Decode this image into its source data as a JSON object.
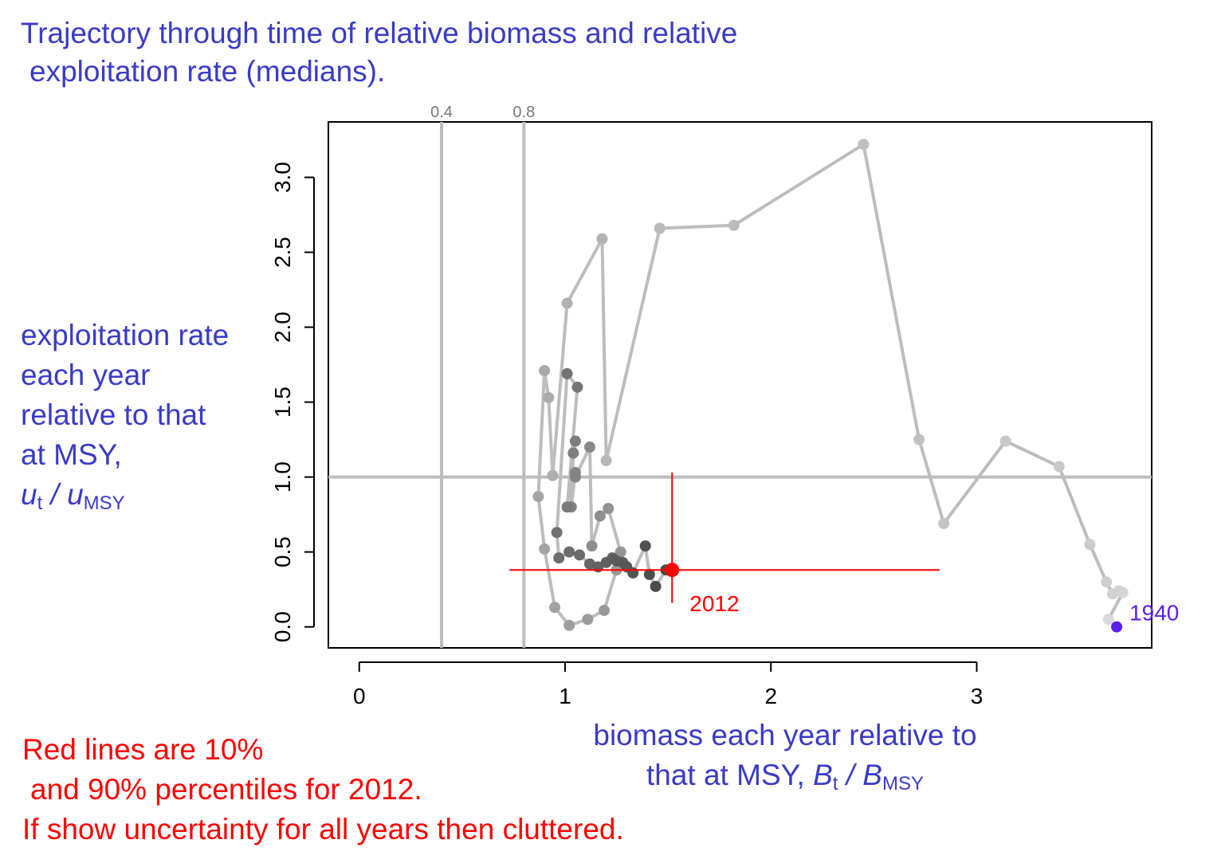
{
  "title": {
    "line1": "Trajectory through time of relative biomass and relative",
    "line2": "exploitation rate (medians)."
  },
  "ylabel": {
    "line1": "exploitation rate",
    "line2": "each year",
    "line3": "relative to that",
    "line4": "at MSY,",
    "u": "u",
    "t": "t",
    "slash": " / ",
    "u2": "u",
    "msy": "MSY"
  },
  "xlabel": {
    "line1": "biomass each year relative to",
    "line2_prefix": "that at MSY, ",
    "B": "B",
    "t": "t",
    "slash": " / ",
    "B2": "B",
    "msy": "MSY"
  },
  "note": {
    "line1": "Red lines are 10%",
    "line2": "and 90% percentiles for 2012.",
    "line3": "If show uncertainty for all years then cluttered."
  },
  "chart_data": {
    "type": "line",
    "xlim": [
      -0.15,
      3.85
    ],
    "ylim": [
      -0.14,
      3.37
    ],
    "x_ticks": [
      0,
      1,
      2,
      3
    ],
    "x_tick_labels": [
      "0",
      "1",
      "2",
      "3"
    ],
    "y_ticks": [
      0.0,
      0.5,
      1.0,
      1.5,
      2.0,
      2.5,
      3.0
    ],
    "y_tick_labels": [
      "0.0",
      "0.5",
      "1.0",
      "1.5",
      "2.0",
      "2.5",
      "3.0"
    ],
    "vlines": [
      {
        "x": 0.4,
        "label": "0.4"
      },
      {
        "x": 0.8,
        "label": "0.8"
      }
    ],
    "hline": {
      "y": 1.0
    },
    "line_color": "#bdbdbd",
    "start_color": "#5b1ff0",
    "end_color": "#ff0000",
    "trajectory": [
      {
        "x": 3.68,
        "y": 0.0
      },
      {
        "x": 3.64,
        "y": 0.05
      },
      {
        "x": 3.71,
        "y": 0.23
      },
      {
        "x": 3.69,
        "y": 0.24
      },
      {
        "x": 3.66,
        "y": 0.22
      },
      {
        "x": 3.63,
        "y": 0.3
      },
      {
        "x": 3.55,
        "y": 0.55
      },
      {
        "x": 3.4,
        "y": 1.07
      },
      {
        "x": 3.14,
        "y": 1.24
      },
      {
        "x": 2.84,
        "y": 0.69
      },
      {
        "x": 2.72,
        "y": 1.25
      },
      {
        "x": 2.45,
        "y": 3.22
      },
      {
        "x": 1.82,
        "y": 2.68
      },
      {
        "x": 1.46,
        "y": 2.66
      },
      {
        "x": 1.2,
        "y": 1.11
      },
      {
        "x": 1.18,
        "y": 2.59
      },
      {
        "x": 1.01,
        "y": 2.16
      },
      {
        "x": 0.94,
        "y": 1.01
      },
      {
        "x": 0.92,
        "y": 1.53
      },
      {
        "x": 0.9,
        "y": 1.71
      },
      {
        "x": 0.87,
        "y": 0.87
      },
      {
        "x": 0.9,
        "y": 0.52
      },
      {
        "x": 0.95,
        "y": 0.13
      },
      {
        "x": 1.02,
        "y": 0.01
      },
      {
        "x": 1.11,
        "y": 0.05
      },
      {
        "x": 1.19,
        "y": 0.11
      },
      {
        "x": 1.25,
        "y": 0.38
      },
      {
        "x": 1.27,
        "y": 0.5
      },
      {
        "x": 1.21,
        "y": 0.79
      },
      {
        "x": 1.17,
        "y": 0.74
      },
      {
        "x": 1.13,
        "y": 0.54
      },
      {
        "x": 1.12,
        "y": 1.2
      },
      {
        "x": 1.05,
        "y": 1.0
      },
      {
        "x": 1.05,
        "y": 1.03
      },
      {
        "x": 1.03,
        "y": 0.8
      },
      {
        "x": 1.04,
        "y": 1.16
      },
      {
        "x": 1.05,
        "y": 1.24
      },
      {
        "x": 1.01,
        "y": 0.8
      },
      {
        "x": 1.06,
        "y": 1.6
      },
      {
        "x": 1.01,
        "y": 1.69
      },
      {
        "x": 0.96,
        "y": 0.63
      },
      {
        "x": 0.97,
        "y": 0.46
      },
      {
        "x": 1.02,
        "y": 0.5
      },
      {
        "x": 1.07,
        "y": 0.48
      },
      {
        "x": 1.12,
        "y": 0.42
      },
      {
        "x": 1.16,
        "y": 0.4
      },
      {
        "x": 1.2,
        "y": 0.43
      },
      {
        "x": 1.23,
        "y": 0.46
      },
      {
        "x": 1.25,
        "y": 0.44
      },
      {
        "x": 1.28,
        "y": 0.43
      },
      {
        "x": 1.3,
        "y": 0.4
      },
      {
        "x": 1.33,
        "y": 0.36
      },
      {
        "x": 1.39,
        "y": 0.54
      },
      {
        "x": 1.41,
        "y": 0.35
      },
      {
        "x": 1.44,
        "y": 0.27
      },
      {
        "x": 1.49,
        "y": 0.38
      },
      {
        "x": 1.52,
        "y": 0.38
      }
    ],
    "start_label": "1940",
    "end_label": "2012",
    "end_point": {
      "x": 1.52,
      "y": 0.38
    },
    "end_interval_x": [
      0.73,
      2.82
    ],
    "end_interval_y": [
      0.16,
      1.03
    ]
  }
}
